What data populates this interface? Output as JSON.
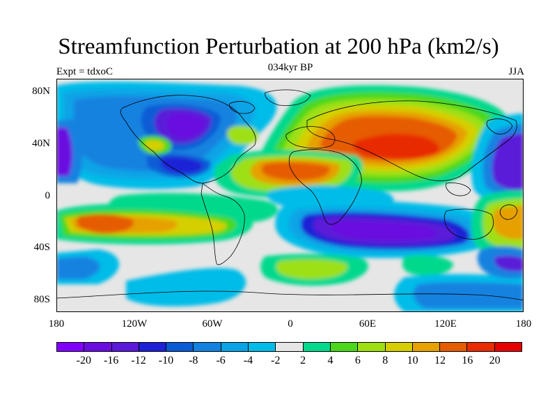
{
  "title": "Streamfunction Perturbation at 200 hPa (km2/s)",
  "subtitle_left": "Expt = tdxoC",
  "subtitle_center": "034kyr BP",
  "subtitle_right": "JJA",
  "axes": {
    "y_ticks": [
      "80N",
      "40N",
      "0",
      "40S",
      "80S"
    ],
    "x_ticks": [
      "180",
      "120W",
      "60W",
      "0",
      "60E",
      "120E",
      "180"
    ]
  },
  "colorbar": {
    "labels": [
      "-20",
      "-16",
      "-12",
      "-10",
      "-8",
      "-6",
      "-4",
      "-2",
      "2",
      "4",
      "6",
      "8",
      "10",
      "12",
      "16",
      "20"
    ],
    "colors": [
      "#7f00ff",
      "#6a0de0",
      "#5a1ad8",
      "#1d22d6",
      "#0c5bd6",
      "#1482e0",
      "#0aa4e6",
      "#00bce8",
      "#e6e6e6",
      "#00d98c",
      "#4bd81c",
      "#9ee012",
      "#d6cf00",
      "#e6a000",
      "#e65c00",
      "#e82b00",
      "#e60000"
    ]
  },
  "map": {
    "background": "#e6e6e6",
    "coastline_color": "#000000"
  }
}
